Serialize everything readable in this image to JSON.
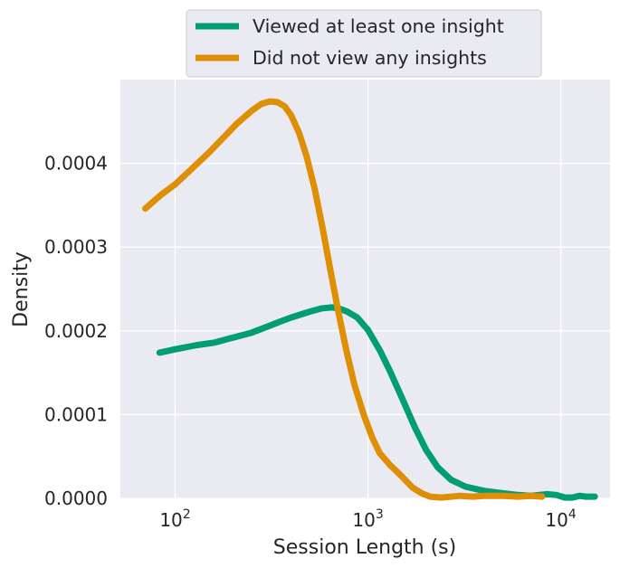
{
  "chart_data": {
    "type": "line",
    "xlabel": "Session Length (s)",
    "ylabel": "Density",
    "xscale": "log",
    "xlim": [
      52,
      18000
    ],
    "ylim": [
      0,
      0.0005
    ],
    "grid": true,
    "legend_position": "top-center",
    "x_ticks": [
      {
        "value": 100,
        "base": "10",
        "exp": "2"
      },
      {
        "value": 1000,
        "base": "10",
        "exp": "3"
      },
      {
        "value": 10000,
        "base": "10",
        "exp": "4"
      }
    ],
    "y_ticks": [
      {
        "value": 0,
        "label": "0.0000"
      },
      {
        "value": 0.0001,
        "label": "0.0001"
      },
      {
        "value": 0.0002,
        "label": "0.0002"
      },
      {
        "value": 0.0003,
        "label": "0.0003"
      },
      {
        "value": 0.0004,
        "label": "0.0004"
      }
    ],
    "series": [
      {
        "name": "Viewed at least one insight",
        "color": "#029e73",
        "points": [
          [
            83,
            0.000174
          ],
          [
            100,
            0.000178
          ],
          [
            130,
            0.000183
          ],
          [
            160,
            0.000186
          ],
          [
            200,
            0.000192
          ],
          [
            250,
            0.000198
          ],
          [
            300,
            0.000205
          ],
          [
            350,
            0.000211
          ],
          [
            400,
            0.000216
          ],
          [
            500,
            0.000223
          ],
          [
            580,
            0.000227
          ],
          [
            650,
            0.000228
          ],
          [
            700,
            0.000227
          ],
          [
            780,
            0.000223
          ],
          [
            880,
            0.000216
          ],
          [
            1000,
            0.000201
          ],
          [
            1150,
            0.000177
          ],
          [
            1300,
            0.000152
          ],
          [
            1500,
            0.00012
          ],
          [
            1750,
            8.5e-05
          ],
          [
            2000,
            5.8e-05
          ],
          [
            2300,
            3.7e-05
          ],
          [
            2700,
            2.2e-05
          ],
          [
            3200,
            1.4e-05
          ],
          [
            4000,
            9e-06
          ],
          [
            5000,
            6e-06
          ],
          [
            6000,
            4e-06
          ],
          [
            7000,
            3e-06
          ],
          [
            8500,
            5e-06
          ],
          [
            9500,
            4e-06
          ],
          [
            10500,
            1e-06
          ],
          [
            11500,
            1e-06
          ],
          [
            12500,
            3e-06
          ],
          [
            13500,
            2e-06
          ],
          [
            15000,
            2e-06
          ]
        ]
      },
      {
        "name": "Did not view any insights",
        "color": "#de8f05",
        "points": [
          [
            70,
            0.000346
          ],
          [
            85,
            0.000363
          ],
          [
            100,
            0.000375
          ],
          [
            120,
            0.000392
          ],
          [
            150,
            0.000413
          ],
          [
            180,
            0.000432
          ],
          [
            210,
            0.000448
          ],
          [
            250,
            0.000463
          ],
          [
            280,
            0.000471
          ],
          [
            310,
            0.000474
          ],
          [
            340,
            0.000473
          ],
          [
            370,
            0.000468
          ],
          [
            400,
            0.000457
          ],
          [
            440,
            0.000436
          ],
          [
            480,
            0.000409
          ],
          [
            530,
            0.000369
          ],
          [
            580,
            0.000324
          ],
          [
            640,
            0.000271
          ],
          [
            700,
            0.000224
          ],
          [
            770,
            0.000178
          ],
          [
            850,
            0.000136
          ],
          [
            950,
            0.0001
          ],
          [
            1050,
            7.3e-05
          ],
          [
            1150,
            5.4e-05
          ],
          [
            1300,
            4e-05
          ],
          [
            1500,
            2.6e-05
          ],
          [
            1700,
            1.3e-05
          ],
          [
            1900,
            6e-06
          ],
          [
            2100,
            2e-06
          ],
          [
            2400,
            1e-06
          ],
          [
            3000,
            3e-06
          ],
          [
            3500,
            2e-06
          ],
          [
            4000,
            3e-06
          ],
          [
            5000,
            3e-06
          ],
          [
            6000,
            2e-06
          ],
          [
            7000,
            3e-06
          ],
          [
            8000,
            2e-06
          ]
        ]
      }
    ]
  }
}
